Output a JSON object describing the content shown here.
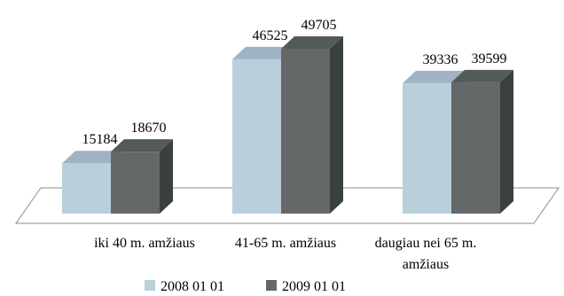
{
  "chart_data": {
    "type": "bar",
    "categories": [
      "iki 40 m. amžiaus",
      "41-65 m. amžiaus",
      "daugiau nei 65 m. amžiaus"
    ],
    "category_label_lines": [
      [
        "iki 40 m. amžiaus"
      ],
      [
        "41-65 m. amžiaus"
      ],
      [
        "daugiau nei 65 m.",
        "amžiaus"
      ]
    ],
    "series": [
      {
        "name": "2008 01 01",
        "values": [
          15184,
          46525,
          39336
        ],
        "color": "#b9cfdc"
      },
      {
        "name": "2009 01 01",
        "values": [
          18670,
          49705,
          39599
        ],
        "color": "#646868"
      }
    ],
    "ylim": [
      0,
      55000
    ],
    "grid": false,
    "legend": "bottom",
    "three_d": true
  }
}
